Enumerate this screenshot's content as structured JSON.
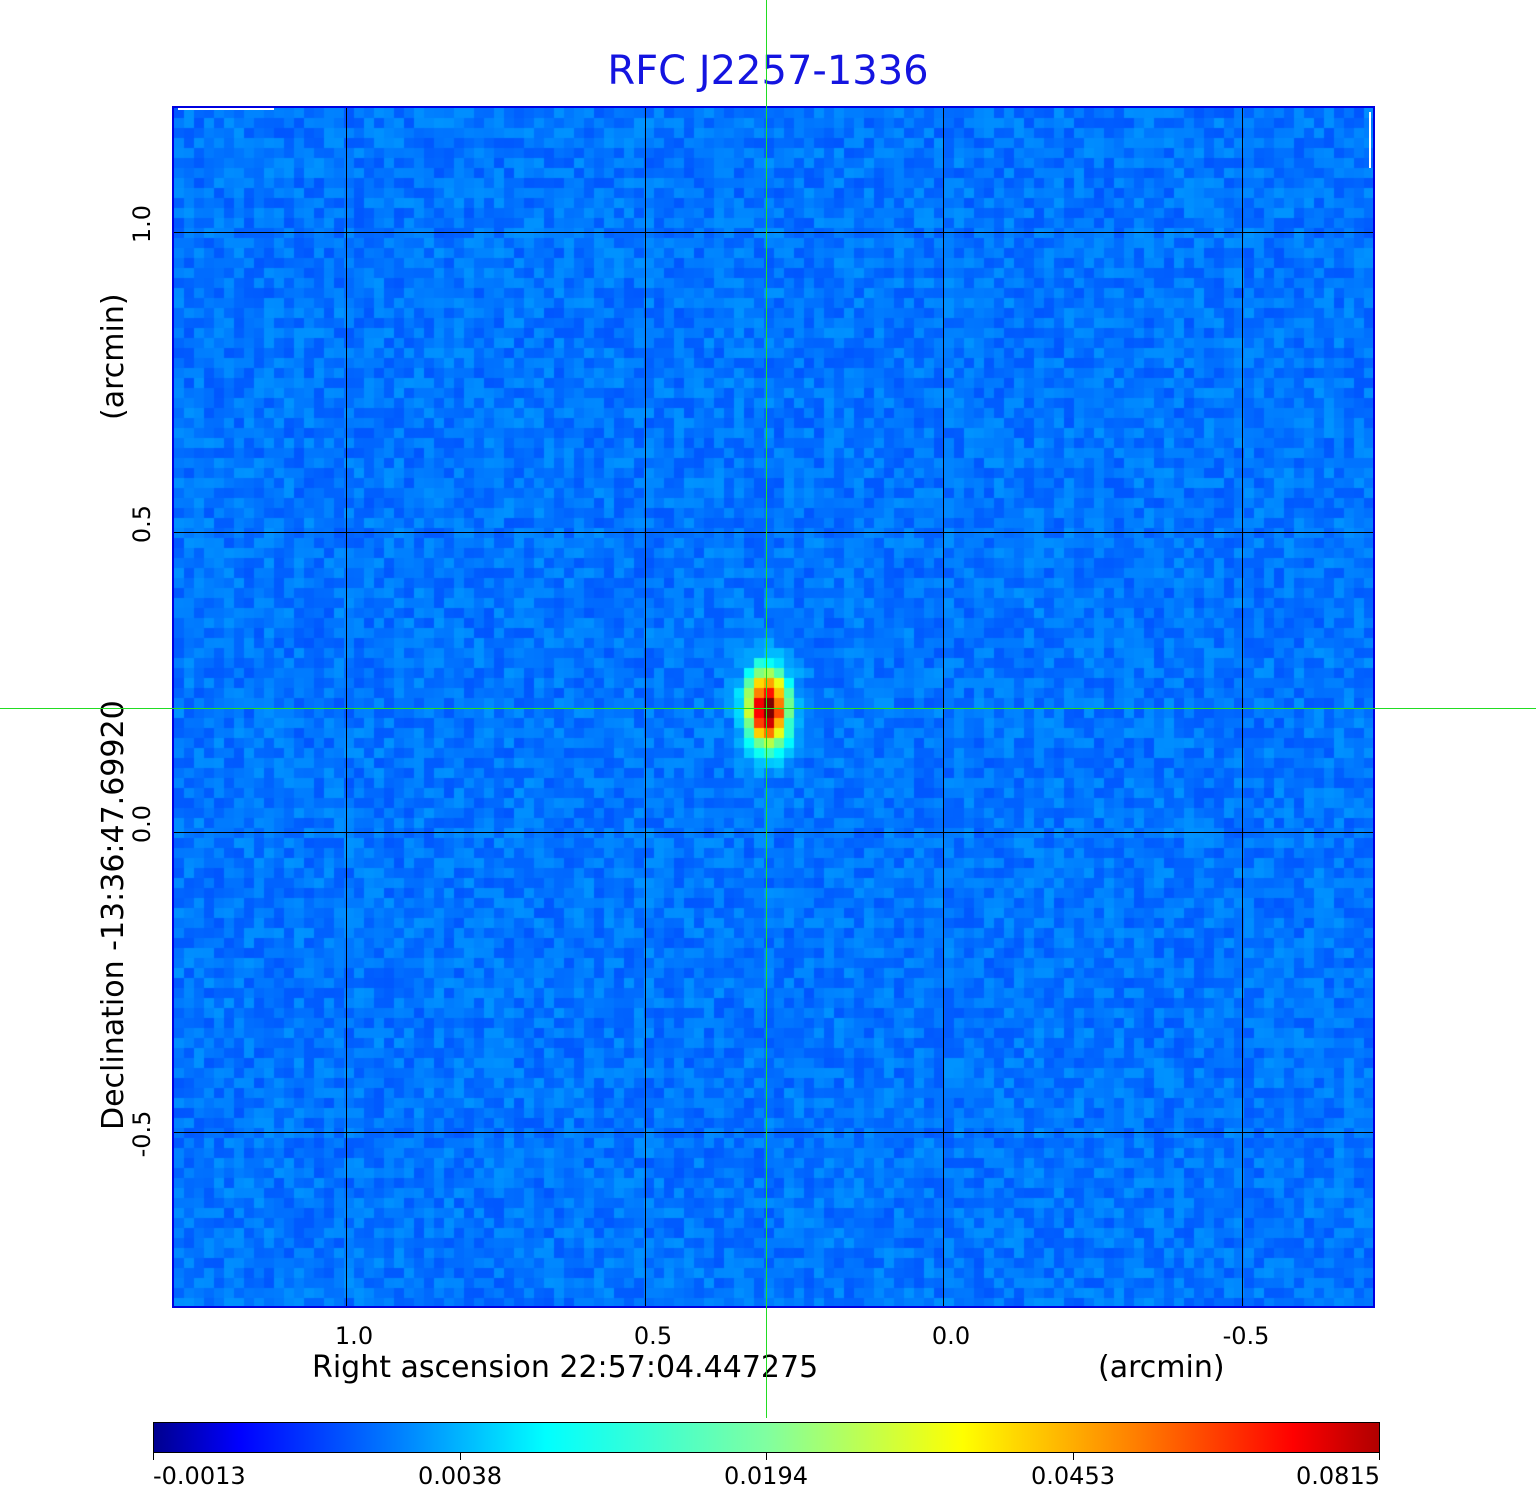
{
  "chart_data": {
    "type": "heatmap",
    "title": "RFC J2257-1336",
    "xlabel": "Right ascension  22:57:04.447275",
    "xunit": "(arcmin)",
    "ylabel": "Declination  -13:36:47.69920",
    "yunit": "(arcmin)",
    "xlim": [
      1.29,
      -0.72
    ],
    "ylim": [
      -0.79,
      1.21
    ],
    "x_ticks": [
      "1.0",
      "0.5",
      "0.0",
      "-0.5"
    ],
    "y_ticks": [
      "1.0",
      "0.5",
      "0.0",
      "-0.5"
    ],
    "grid": true,
    "crosshair": {
      "x": 0.295,
      "y": 0.207
    },
    "source_peak": {
      "x": 0.295,
      "y": 0.207,
      "value": 0.0815
    },
    "colormap": "jet",
    "colorbar_ticks": [
      "-0.0013",
      "0.0038",
      "0.0194",
      "0.0453",
      "0.0815"
    ],
    "colorbar_placement": "bottom",
    "colors": {
      "crosshair": "#22dd22",
      "title": "#1414e0",
      "frame": "#0000e0"
    }
  }
}
